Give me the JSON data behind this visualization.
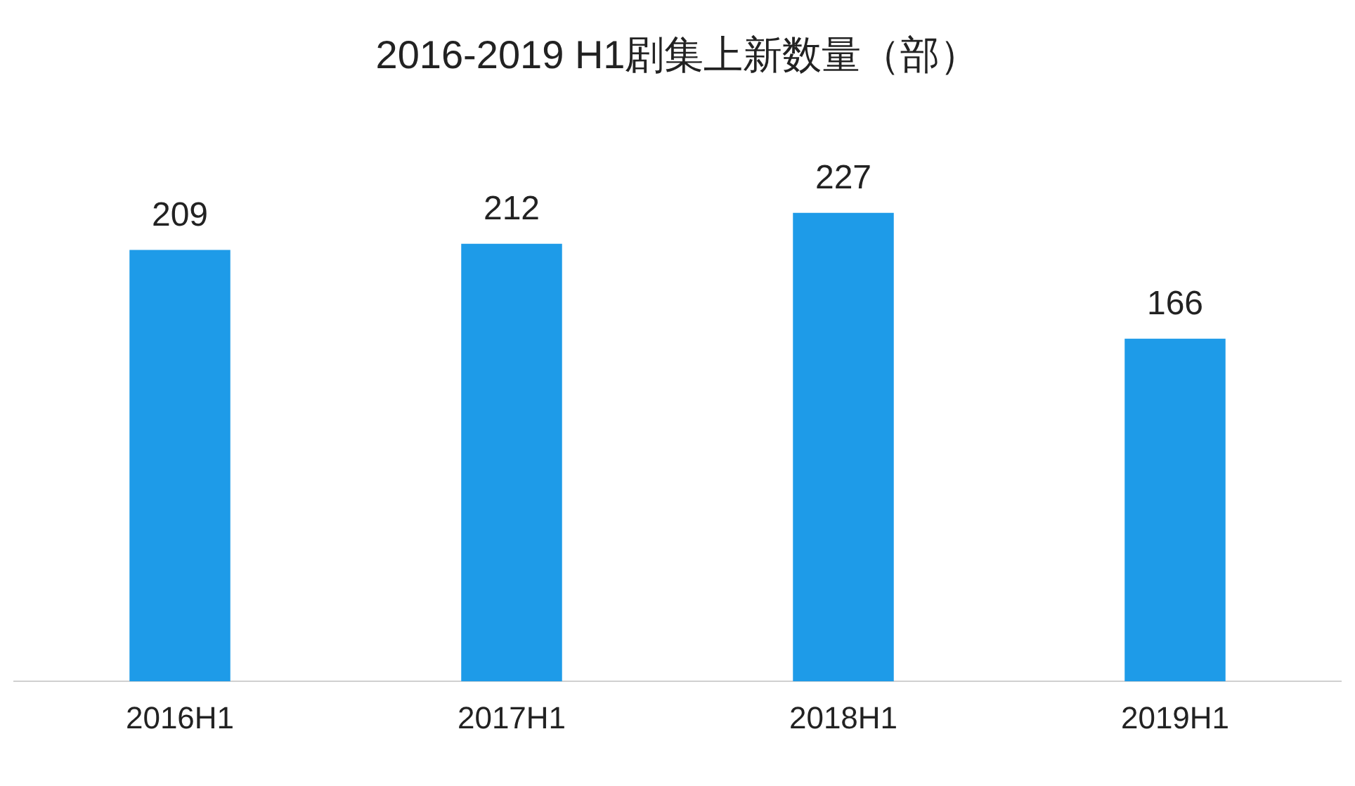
{
  "chart_data": {
    "type": "bar",
    "title": "2016-2019 H1剧集上新数量（部）",
    "categories": [
      "2016H1",
      "2017H1",
      "2018H1",
      "2019H1"
    ],
    "values": [
      209,
      212,
      227,
      166
    ],
    "color": "#1e9be8",
    "data_labels": true
  }
}
